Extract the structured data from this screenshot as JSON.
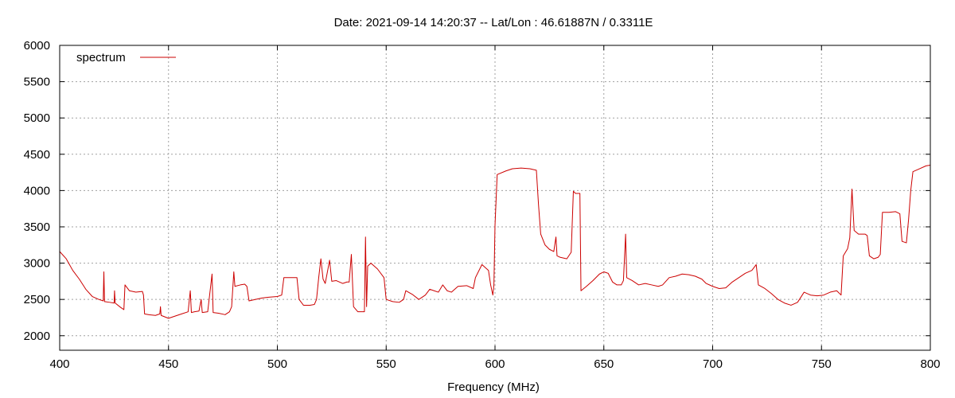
{
  "chart_data": {
    "type": "line",
    "title": "Date: 2021-09-14 14:20:37  --  Lat/Lon : 46.61887N / 0.3311E",
    "xlabel": "Frequency (MHz)",
    "ylabel": "",
    "xlim": [
      400,
      800
    ],
    "ylim": [
      1800,
      6000
    ],
    "xticks": [
      400,
      450,
      500,
      550,
      600,
      650,
      700,
      750,
      800
    ],
    "yticks": [
      2000,
      2500,
      3000,
      3500,
      4000,
      4500,
      5000,
      5500,
      6000
    ],
    "grid": true,
    "legend_position": "top-left",
    "series": [
      {
        "name": "spectrum",
        "color": "#cc0000",
        "points": [
          [
            400,
            3160
          ],
          [
            403,
            3060
          ],
          [
            406,
            2900
          ],
          [
            409,
            2780
          ],
          [
            412,
            2640
          ],
          [
            415,
            2540
          ],
          [
            418,
            2500
          ],
          [
            420,
            2480
          ],
          [
            420.3,
            2880
          ],
          [
            420.6,
            2470
          ],
          [
            423,
            2460
          ],
          [
            425,
            2450
          ],
          [
            425.2,
            2620
          ],
          [
            425.5,
            2450
          ],
          [
            428,
            2390
          ],
          [
            429.5,
            2360
          ],
          [
            430,
            2700
          ],
          [
            432,
            2620
          ],
          [
            435,
            2600
          ],
          [
            438,
            2610
          ],
          [
            438.5,
            2560
          ],
          [
            439,
            2300
          ],
          [
            441,
            2290
          ],
          [
            444,
            2280
          ],
          [
            446,
            2300
          ],
          [
            446.3,
            2400
          ],
          [
            446.6,
            2280
          ],
          [
            450,
            2240
          ],
          [
            453,
            2270
          ],
          [
            456,
            2300
          ],
          [
            459,
            2330
          ],
          [
            460,
            2620
          ],
          [
            460.5,
            2320
          ],
          [
            462,
            2330
          ],
          [
            464,
            2340
          ],
          [
            465,
            2500
          ],
          [
            465.5,
            2320
          ],
          [
            468,
            2330
          ],
          [
            470,
            2850
          ],
          [
            470.5,
            2320
          ],
          [
            473,
            2310
          ],
          [
            476,
            2290
          ],
          [
            478,
            2330
          ],
          [
            479,
            2400
          ],
          [
            480,
            2880
          ],
          [
            480.5,
            2680
          ],
          [
            483,
            2700
          ],
          [
            485,
            2710
          ],
          [
            486,
            2680
          ],
          [
            487,
            2480
          ],
          [
            490,
            2500
          ],
          [
            493,
            2520
          ],
          [
            496,
            2530
          ],
          [
            500,
            2540
          ],
          [
            502,
            2560
          ],
          [
            503,
            2800
          ],
          [
            506,
            2800
          ],
          [
            509,
            2800
          ],
          [
            510,
            2500
          ],
          [
            512,
            2420
          ],
          [
            515,
            2420
          ],
          [
            517,
            2430
          ],
          [
            518,
            2500
          ],
          [
            519,
            2800
          ],
          [
            520,
            3060
          ],
          [
            521,
            2780
          ],
          [
            522,
            2720
          ],
          [
            524,
            3040
          ],
          [
            525,
            2750
          ],
          [
            527,
            2760
          ],
          [
            530,
            2720
          ],
          [
            532,
            2740
          ],
          [
            533,
            2740
          ],
          [
            534,
            3120
          ],
          [
            535,
            2400
          ],
          [
            537,
            2330
          ],
          [
            540,
            2330
          ],
          [
            540.5,
            3360
          ],
          [
            541,
            2400
          ],
          [
            541.5,
            2960
          ],
          [
            543,
            3000
          ],
          [
            546,
            2920
          ],
          [
            549,
            2800
          ],
          [
            550,
            2500
          ],
          [
            553,
            2470
          ],
          [
            556,
            2460
          ],
          [
            558,
            2500
          ],
          [
            559,
            2620
          ],
          [
            562,
            2570
          ],
          [
            565,
            2500
          ],
          [
            568,
            2560
          ],
          [
            570,
            2640
          ],
          [
            572,
            2620
          ],
          [
            574,
            2600
          ],
          [
            576,
            2700
          ],
          [
            578,
            2620
          ],
          [
            580,
            2600
          ],
          [
            583,
            2680
          ],
          [
            587,
            2690
          ],
          [
            590,
            2650
          ],
          [
            591,
            2800
          ],
          [
            594,
            2980
          ],
          [
            597,
            2900
          ],
          [
            598,
            2700
          ],
          [
            599,
            2560
          ],
          [
            599.5,
            2700
          ],
          [
            600,
            3520
          ],
          [
            601,
            4220
          ],
          [
            605,
            4270
          ],
          [
            608,
            4300
          ],
          [
            612,
            4310
          ],
          [
            616,
            4300
          ],
          [
            619,
            4280
          ],
          [
            620,
            3800
          ],
          [
            621,
            3400
          ],
          [
            623,
            3250
          ],
          [
            625,
            3190
          ],
          [
            627,
            3160
          ],
          [
            628,
            3360
          ],
          [
            628.5,
            3100
          ],
          [
            630,
            3080
          ],
          [
            633,
            3060
          ],
          [
            635,
            3150
          ],
          [
            636,
            3990
          ],
          [
            637,
            3960
          ],
          [
            639,
            3960
          ],
          [
            639.5,
            2620
          ],
          [
            642,
            2680
          ],
          [
            645,
            2760
          ],
          [
            648,
            2850
          ],
          [
            650,
            2880
          ],
          [
            652,
            2860
          ],
          [
            654,
            2740
          ],
          [
            656,
            2700
          ],
          [
            658,
            2700
          ],
          [
            659,
            2760
          ],
          [
            660,
            3400
          ],
          [
            660.5,
            2800
          ],
          [
            663,
            2760
          ],
          [
            666,
            2700
          ],
          [
            669,
            2720
          ],
          [
            672,
            2700
          ],
          [
            675,
            2680
          ],
          [
            677,
            2700
          ],
          [
            680,
            2800
          ],
          [
            683,
            2820
          ],
          [
            686,
            2850
          ],
          [
            689,
            2840
          ],
          [
            692,
            2820
          ],
          [
            695,
            2780
          ],
          [
            697,
            2720
          ],
          [
            700,
            2680
          ],
          [
            703,
            2650
          ],
          [
            706,
            2660
          ],
          [
            709,
            2740
          ],
          [
            712,
            2800
          ],
          [
            715,
            2860
          ],
          [
            718,
            2900
          ],
          [
            720,
            2980
          ],
          [
            721,
            2700
          ],
          [
            724,
            2650
          ],
          [
            727,
            2580
          ],
          [
            730,
            2500
          ],
          [
            733,
            2450
          ],
          [
            736,
            2420
          ],
          [
            739,
            2460
          ],
          [
            742,
            2600
          ],
          [
            745,
            2560
          ],
          [
            748,
            2550
          ],
          [
            751,
            2560
          ],
          [
            754,
            2600
          ],
          [
            757,
            2620
          ],
          [
            759,
            2560
          ],
          [
            760,
            3100
          ],
          [
            762,
            3200
          ],
          [
            763,
            3350
          ],
          [
            764,
            4020
          ],
          [
            765,
            3450
          ],
          [
            767,
            3400
          ],
          [
            770,
            3400
          ],
          [
            771,
            3380
          ],
          [
            772,
            3100
          ],
          [
            774,
            3060
          ],
          [
            776,
            3080
          ],
          [
            777,
            3120
          ],
          [
            778,
            3700
          ],
          [
            781,
            3700
          ],
          [
            784,
            3710
          ],
          [
            786,
            3680
          ],
          [
            787,
            3300
          ],
          [
            789,
            3280
          ],
          [
            790,
            3600
          ],
          [
            791,
            4000
          ],
          [
            792,
            4260
          ],
          [
            795,
            4300
          ],
          [
            798,
            4340
          ],
          [
            800,
            4350
          ]
        ]
      }
    ]
  }
}
